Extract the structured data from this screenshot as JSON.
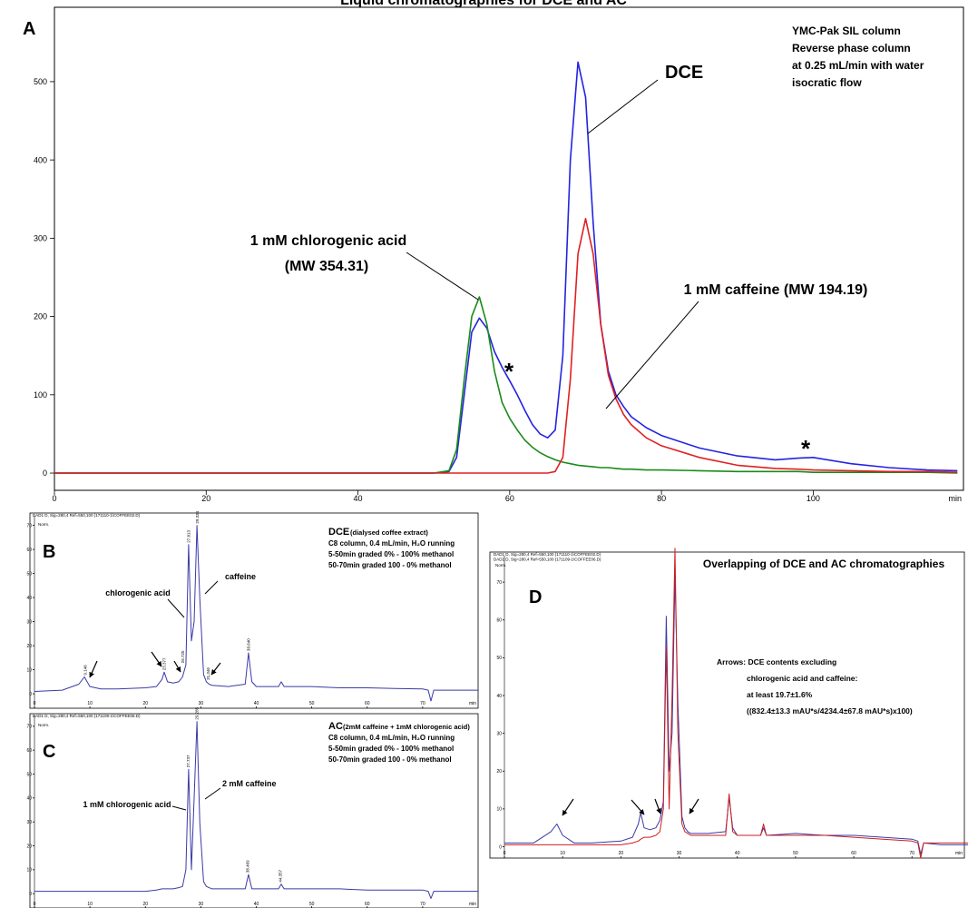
{
  "title": "Liquid chromatographies for DCE and AC",
  "chart_data": [
    {
      "type": "line",
      "panel_label": "A",
      "info_lines": [
        "YMC-Pak SIL column",
        "Reverse phase column",
        "at 0.25 mL/min with water",
        "isocratic flow"
      ],
      "annotations": [
        "DCE",
        "1 mM chlorogenic acid",
        "(MW 354.31)",
        "1 mM caffeine (MW 194.19)",
        "*",
        "*"
      ],
      "x_unit": "min",
      "x": [
        0,
        10,
        20,
        30,
        40,
        45,
        50,
        52,
        53,
        54,
        55,
        56,
        57,
        58,
        59,
        60,
        61,
        62,
        63,
        64,
        65,
        66,
        67,
        68,
        69,
        70,
        71,
        72,
        73,
        74,
        75,
        76,
        78,
        80,
        85,
        90,
        95,
        98,
        100,
        105,
        110,
        115,
        119
      ],
      "series": [
        {
          "color": "#2323e0",
          "values": [
            0,
            0,
            0,
            0,
            0,
            0,
            0,
            2,
            20,
            100,
            180,
            198,
            185,
            155,
            135,
            118,
            100,
            80,
            62,
            50,
            45,
            55,
            150,
            400,
            525,
            480,
            320,
            190,
            130,
            100,
            85,
            72,
            58,
            48,
            32,
            22,
            17,
            19,
            20,
            12,
            7,
            4,
            3
          ]
        },
        {
          "color": "#1a8a1a",
          "values": [
            0,
            0,
            0,
            0,
            0,
            0,
            0,
            3,
            30,
            120,
            200,
            225,
            190,
            130,
            90,
            70,
            55,
            42,
            33,
            26,
            21,
            17,
            14,
            12,
            10,
            9,
            8,
            7,
            7,
            6,
            5,
            5,
            4,
            4,
            3,
            2,
            2,
            2,
            1,
            1,
            1,
            1,
            0
          ]
        },
        {
          "color": "#e02020",
          "values": [
            0,
            0,
            0,
            0,
            0,
            0,
            0,
            0,
            0,
            0,
            0,
            0,
            0,
            0,
            0,
            0,
            0,
            0,
            0,
            0,
            0,
            2,
            20,
            120,
            280,
            325,
            280,
            190,
            125,
            95,
            75,
            62,
            45,
            35,
            20,
            10,
            6,
            5,
            4,
            3,
            2,
            2,
            1
          ]
        }
      ],
      "xlim": [
        0,
        119.8
      ],
      "ylim": [
        -22,
        595
      ],
      "xticks": [
        0,
        20,
        40,
        60,
        80,
        100
      ],
      "yticks": [
        0,
        100,
        200,
        300,
        400,
        500
      ]
    },
    {
      "type": "line",
      "panel_label": "B",
      "header_lines": [
        "DAD1 D, Sig=280,4 Ref=550,100 (171110-1\\COFFEE02.D)"
      ],
      "title": "DCE",
      "subtitle": "(dialysed coffee extract)",
      "info_lines": [
        "C8 column, 0.4 mL/min, H₂O running",
        "5-50min graded 0% - 100% methanol",
        "50-70min graded 100 - 0% methanol"
      ],
      "annotations": [
        "chlorogenic acid",
        "caffeine"
      ],
      "y_axis_label": "Norm.",
      "x_unit": "min",
      "peak_labels": [
        "9.146",
        "23.377",
        "26.725",
        "27.813",
        "29.334",
        "31.346",
        "38.640"
      ],
      "x": [
        0,
        5,
        8,
        9,
        10,
        12,
        15,
        20,
        22,
        23,
        23.4,
        24,
        25,
        26,
        26.7,
        27.3,
        27.8,
        28.3,
        28.8,
        29.3,
        29.8,
        30.5,
        31,
        31.5,
        32,
        35,
        38,
        38.6,
        39.2,
        40,
        44,
        44.5,
        45,
        50,
        55,
        60,
        65,
        70,
        71,
        71.5,
        72,
        75,
        80
      ],
      "series": [
        {
          "color": "#3a3aa8",
          "values": [
            1,
            1.5,
            4,
            7,
            3,
            2,
            2,
            2.5,
            3,
            6,
            9,
            5,
            4.5,
            5,
            7,
            12,
            62,
            22,
            30,
            70,
            40,
            8,
            5,
            4,
            3.5,
            3,
            4,
            17,
            5,
            3,
            3,
            5,
            3,
            3,
            2.5,
            2.5,
            2.2,
            2,
            1.5,
            -3,
            1.5,
            1.5,
            1.5
          ]
        }
      ],
      "xlim": [
        0,
        80
      ],
      "ylim": [
        -6,
        74
      ],
      "xticks": [
        0,
        10,
        20,
        30,
        40,
        50,
        60,
        70
      ],
      "yticks": [
        0,
        10,
        20,
        30,
        40,
        50,
        60,
        70
      ]
    },
    {
      "type": "line",
      "panel_label": "C",
      "header_lines": [
        "DAD1 D, Sig=280,4 Ref=550,100 (171109-1\\COFFEE06.D)"
      ],
      "title": "AC",
      "subtitle": "(2mM caffeine + 1mM chlorogenic acid)",
      "info_lines": [
        "C8 column, 0.4 mL/min, H₂O running",
        "5-50min graded 0% - 100% methanol",
        "50-70min graded 100 - 0% methanol"
      ],
      "annotations": [
        "1 mM chlorogenic acid",
        "2 mM caffeine"
      ],
      "y_axis_label": "Norm.",
      "x_unit": "min",
      "peak_labels": [
        "27.737",
        "29.285",
        "38.469",
        "44.357"
      ],
      "x": [
        0,
        5,
        8,
        9,
        10,
        12,
        15,
        20,
        22,
        23,
        23.4,
        24,
        25,
        26,
        26.7,
        27.3,
        27.8,
        28.3,
        28.8,
        29.3,
        29.8,
        30.5,
        31,
        31.5,
        32,
        35,
        38,
        38.6,
        39.2,
        40,
        44,
        44.5,
        45,
        50,
        55,
        60,
        65,
        70,
        71,
        71.5,
        72,
        75,
        80
      ],
      "series": [
        {
          "color": "#3a3aa8",
          "values": [
            1,
            1,
            1,
            1,
            1,
            1,
            1,
            1,
            1.5,
            2,
            2,
            2,
            2,
            2.5,
            3,
            10,
            52,
            10,
            40,
            72,
            30,
            5,
            3,
            2.5,
            2,
            2,
            2,
            8,
            2,
            2,
            2,
            4,
            2,
            2,
            2,
            1.5,
            1.5,
            1.5,
            1,
            -2,
            1,
            1,
            1
          ]
        }
      ],
      "xlim": [
        0,
        80
      ],
      "ylim": [
        -6,
        74.5
      ],
      "xticks": [
        0,
        10,
        20,
        30,
        40,
        50,
        60,
        70
      ],
      "yticks": [
        0,
        10,
        20,
        30,
        40,
        50,
        60,
        70
      ]
    },
    {
      "type": "line",
      "panel_label": "D",
      "header_lines": [
        "DAD1 D, Sig=280,4 Ref=550,100 (171110-1\\COFFEE02.D)",
        "DAD1 D, Sig=280,4 Ref=550,100 (171109-1\\COFFEE06.D)"
      ],
      "title": "Overlapping of DCE and AC chromatographies",
      "annotations": [
        "Arrows: DCE contents excluding",
        "chlorogenic acid and caffeine:",
        "at least 19.7±1.6%",
        "((832.4±13.3 mAU*s/4234.4±67.8 mAU*s)x100)"
      ],
      "y_axis_label": "Norm.",
      "x_unit": "min",
      "x": [
        0,
        5,
        8,
        9,
        10,
        12,
        15,
        20,
        22,
        23,
        23.4,
        24,
        25,
        26,
        26.7,
        27.3,
        27.8,
        28.3,
        28.8,
        29.3,
        29.8,
        30.5,
        31,
        31.5,
        32,
        35,
        38,
        38.6,
        39.2,
        40,
        44,
        44.5,
        45,
        50,
        55,
        60,
        65,
        70,
        71,
        71.5,
        72,
        75,
        80
      ],
      "series": [
        {
          "color": "#3a3aa8",
          "values": [
            1,
            1,
            4,
            6,
            3,
            1,
            1,
            1.5,
            2.5,
            6,
            9,
            5,
            4.5,
            5,
            7,
            12,
            61,
            20,
            30,
            72,
            38,
            8,
            5,
            4,
            3.5,
            3.5,
            4,
            13,
            5,
            3,
            3,
            5,
            3,
            3.5,
            3,
            3,
            2.5,
            2,
            1.5,
            -2,
            1,
            0.5,
            0.5
          ]
        },
        {
          "color": "#cc1f1f",
          "values": [
            0.5,
            0.5,
            0.5,
            0.5,
            0.5,
            0.5,
            0.5,
            0.5,
            1,
            1.5,
            2,
            2.5,
            2.5,
            3,
            4,
            10,
            53,
            10,
            40,
            79,
            30,
            6,
            4,
            3.5,
            3,
            3,
            3,
            14,
            4,
            3,
            3,
            6,
            3,
            3,
            3,
            2.5,
            2,
            1.5,
            1,
            -3,
            1,
            1,
            1
          ]
        }
      ],
      "xlim": [
        0,
        79
      ],
      "ylim": [
        -3,
        77
      ],
      "xticks": [
        0,
        10,
        20,
        30,
        40,
        50,
        60,
        70
      ],
      "yticks": [
        0,
        10,
        20,
        30,
        40,
        50,
        60,
        70
      ]
    }
  ]
}
